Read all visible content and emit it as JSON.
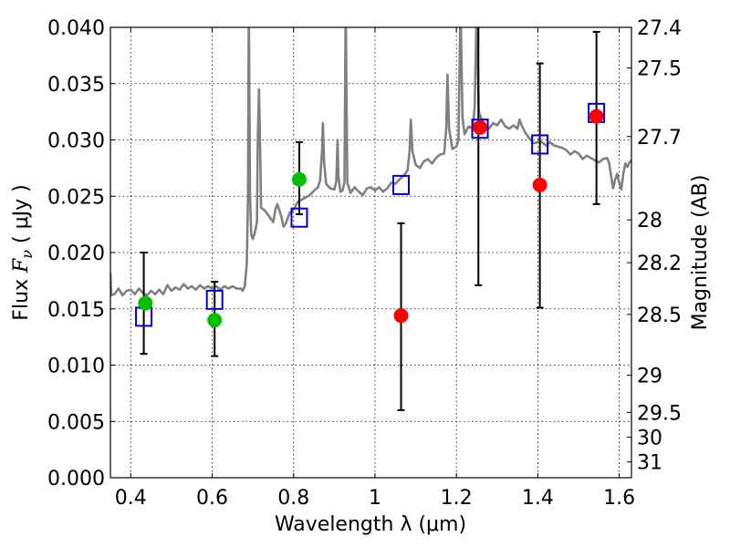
{
  "chart_data": {
    "type": "scatter",
    "title": "",
    "xlabel": "Wavelength  λ (μm)",
    "ylabel_parts": [
      "Flux  ",
      "F",
      "ν",
      "  ( μJy )"
    ],
    "y2label": "Magnitude (AB)",
    "xlim": [
      0.35,
      1.63
    ],
    "ylim": [
      0.0,
      0.04
    ],
    "grid": true,
    "xticks": [
      0.4,
      0.6,
      0.8,
      1.0,
      1.2,
      1.4,
      1.6
    ],
    "xtick_labels": [
      "0.4",
      "0.6",
      "0.8",
      "1",
      "1.2",
      "1.4",
      "1.6"
    ],
    "yticks": [
      0.0,
      0.005,
      0.01,
      0.015,
      0.02,
      0.025,
      0.03,
      0.035,
      0.04
    ],
    "ytick_labels": [
      "0.000",
      "0.005",
      "0.010",
      "0.015",
      "0.020",
      "0.025",
      "0.030",
      "0.035",
      "0.040"
    ],
    "y2ticks": [
      {
        "label": "27.4",
        "flux": 0.04
      },
      {
        "label": "27.5",
        "flux": 0.0364
      },
      {
        "label": "27.7",
        "flux": 0.0303
      },
      {
        "label": "28",
        "flux": 0.0229
      },
      {
        "label": "28.2",
        "flux": 0.0191
      },
      {
        "label": "28.5",
        "flux": 0.0145
      },
      {
        "label": "29",
        "flux": 0.0091
      },
      {
        "label": "29.5",
        "flux": 0.0058
      },
      {
        "label": "30",
        "flux": 0.0036
      },
      {
        "label": "31",
        "flux": 0.0014
      }
    ],
    "series": [
      {
        "kind": "line",
        "color": "#808080",
        "points": [
          [
            0.35,
            0.0182
          ],
          [
            0.352,
            0.0162
          ],
          [
            0.36,
            0.0163
          ],
          [
            0.37,
            0.0168
          ],
          [
            0.38,
            0.0162
          ],
          [
            0.39,
            0.0166
          ],
          [
            0.4,
            0.0167
          ],
          [
            0.41,
            0.0163
          ],
          [
            0.42,
            0.0168
          ],
          [
            0.43,
            0.0164
          ],
          [
            0.44,
            0.0162
          ],
          [
            0.45,
            0.0166
          ],
          [
            0.46,
            0.0163
          ],
          [
            0.47,
            0.0167
          ],
          [
            0.48,
            0.0163
          ],
          [
            0.49,
            0.0171
          ],
          [
            0.5,
            0.0166
          ],
          [
            0.51,
            0.0169
          ],
          [
            0.52,
            0.0167
          ],
          [
            0.53,
            0.0172
          ],
          [
            0.54,
            0.0168
          ],
          [
            0.55,
            0.017
          ],
          [
            0.56,
            0.0167
          ],
          [
            0.57,
            0.0171
          ],
          [
            0.58,
            0.0168
          ],
          [
            0.59,
            0.017
          ],
          [
            0.6,
            0.0168
          ],
          [
            0.61,
            0.017
          ],
          [
            0.62,
            0.0167
          ],
          [
            0.63,
            0.017
          ],
          [
            0.64,
            0.0168
          ],
          [
            0.65,
            0.017
          ],
          [
            0.66,
            0.0168
          ],
          [
            0.67,
            0.0168
          ],
          [
            0.675,
            0.0166
          ],
          [
            0.68,
            0.017
          ],
          [
            0.685,
            0.019
          ],
          [
            0.688,
            0.025
          ],
          [
            0.69,
            0.042
          ],
          [
            0.693,
            0.025
          ],
          [
            0.696,
            0.0216
          ],
          [
            0.7,
            0.0212
          ],
          [
            0.705,
            0.0218
          ],
          [
            0.71,
            0.0227
          ],
          [
            0.712,
            0.03
          ],
          [
            0.715,
            0.0345
          ],
          [
            0.718,
            0.029
          ],
          [
            0.72,
            0.024
          ],
          [
            0.73,
            0.0237
          ],
          [
            0.74,
            0.0232
          ],
          [
            0.75,
            0.0227
          ],
          [
            0.755,
            0.0238
          ],
          [
            0.76,
            0.0243
          ],
          [
            0.77,
            0.0232
          ],
          [
            0.775,
            0.0223
          ],
          [
            0.78,
            0.0225
          ],
          [
            0.79,
            0.0235
          ],
          [
            0.8,
            0.0238
          ],
          [
            0.81,
            0.0245
          ],
          [
            0.82,
            0.0247
          ],
          [
            0.83,
            0.0249
          ],
          [
            0.84,
            0.0251
          ],
          [
            0.85,
            0.0255
          ],
          [
            0.86,
            0.0258
          ],
          [
            0.865,
            0.0264
          ],
          [
            0.87,
            0.029
          ],
          [
            0.872,
            0.0315
          ],
          [
            0.875,
            0.028
          ],
          [
            0.88,
            0.0261
          ],
          [
            0.89,
            0.0257
          ],
          [
            0.9,
            0.0256
          ],
          [
            0.905,
            0.0263
          ],
          [
            0.908,
            0.03
          ],
          [
            0.91,
            0.0268
          ],
          [
            0.915,
            0.0254
          ],
          [
            0.92,
            0.0255
          ],
          [
            0.925,
            0.0262
          ],
          [
            0.928,
            0.042
          ],
          [
            0.932,
            0.0262
          ],
          [
            0.94,
            0.0253
          ],
          [
            0.95,
            0.0258
          ],
          [
            0.96,
            0.0254
          ],
          [
            0.97,
            0.0251
          ],
          [
            0.98,
            0.0257
          ],
          [
            0.99,
            0.0258
          ],
          [
            1.0,
            0.0255
          ],
          [
            1.01,
            0.0258
          ],
          [
            1.02,
            0.0254
          ],
          [
            1.03,
            0.0257
          ],
          [
            1.04,
            0.0262
          ],
          [
            1.05,
            0.0261
          ],
          [
            1.06,
            0.0265
          ],
          [
            1.07,
            0.0268
          ],
          [
            1.08,
            0.0273
          ],
          [
            1.085,
            0.029
          ],
          [
            1.088,
            0.0318
          ],
          [
            1.092,
            0.029
          ],
          [
            1.1,
            0.0278
          ],
          [
            1.11,
            0.0275
          ],
          [
            1.12,
            0.0281
          ],
          [
            1.13,
            0.0283
          ],
          [
            1.14,
            0.0279
          ],
          [
            1.15,
            0.0284
          ],
          [
            1.16,
            0.0287
          ],
          [
            1.17,
            0.0288
          ],
          [
            1.175,
            0.031
          ],
          [
            1.178,
            0.0358
          ],
          [
            1.182,
            0.031
          ],
          [
            1.19,
            0.0292
          ],
          [
            1.2,
            0.0294
          ],
          [
            1.205,
            0.03
          ],
          [
            1.21,
            0.042
          ],
          [
            1.215,
            0.032
          ],
          [
            1.22,
            0.0305
          ],
          [
            1.23,
            0.0312
          ],
          [
            1.24,
            0.031
          ],
          [
            1.245,
            0.033
          ],
          [
            1.25,
            0.042
          ],
          [
            1.255,
            0.0325
          ],
          [
            1.26,
            0.032
          ],
          [
            1.27,
            0.0312
          ],
          [
            1.28,
            0.031
          ],
          [
            1.29,
            0.0315
          ],
          [
            1.3,
            0.0313
          ],
          [
            1.31,
            0.0318
          ],
          [
            1.32,
            0.0312
          ],
          [
            1.33,
            0.031
          ],
          [
            1.34,
            0.0313
          ],
          [
            1.35,
            0.031
          ],
          [
            1.355,
            0.0318
          ],
          [
            1.36,
            0.0313
          ],
          [
            1.37,
            0.0306
          ],
          [
            1.38,
            0.0301
          ],
          [
            1.39,
            0.0297
          ],
          [
            1.4,
            0.0298
          ],
          [
            1.41,
            0.0298
          ],
          [
            1.42,
            0.0295
          ],
          [
            1.43,
            0.0298
          ],
          [
            1.44,
            0.0295
          ],
          [
            1.45,
            0.0294
          ],
          [
            1.46,
            0.0293
          ],
          [
            1.47,
            0.0291
          ],
          [
            1.48,
            0.0287
          ],
          [
            1.49,
            0.029
          ],
          [
            1.5,
            0.0288
          ],
          [
            1.51,
            0.0283
          ],
          [
            1.52,
            0.0286
          ],
          [
            1.53,
            0.0284
          ],
          [
            1.54,
            0.0282
          ],
          [
            1.55,
            0.028
          ],
          [
            1.56,
            0.0283
          ],
          [
            1.57,
            0.0284
          ],
          [
            1.575,
            0.028
          ],
          [
            1.58,
            0.0268
          ],
          [
            1.585,
            0.0257
          ],
          [
            1.59,
            0.0265
          ],
          [
            1.595,
            0.027
          ],
          [
            1.6,
            0.0262
          ],
          [
            1.605,
            0.0256
          ],
          [
            1.61,
            0.027
          ],
          [
            1.615,
            0.0279
          ],
          [
            1.62,
            0.0276
          ],
          [
            1.625,
            0.028
          ],
          [
            1.63,
            0.0282
          ]
        ]
      },
      {
        "kind": "errorbars",
        "color": "#000000",
        "points": [
          {
            "x": 0.432,
            "low": 0.011,
            "high": 0.02
          },
          {
            "x": 0.606,
            "low": 0.0108,
            "high": 0.0174
          },
          {
            "x": 0.814,
            "low": 0.0234,
            "high": 0.0298
          },
          {
            "x": 1.064,
            "low": 0.006,
            "high": 0.0226
          },
          {
            "x": 1.254,
            "low": 0.0171,
            "high": 0.042
          },
          {
            "x": 1.405,
            "low": 0.0151,
            "high": 0.0368
          },
          {
            "x": 1.544,
            "low": 0.0243,
            "high": 0.0396
          }
        ]
      },
      {
        "kind": "markers",
        "marker": "square",
        "color": "#0000cc",
        "points": [
          [
            0.432,
            0.0143
          ],
          [
            0.606,
            0.0158
          ],
          [
            0.814,
            0.0231
          ],
          [
            1.064,
            0.026
          ],
          [
            1.258,
            0.031
          ],
          [
            1.405,
            0.0296
          ],
          [
            1.544,
            0.0324
          ]
        ]
      },
      {
        "kind": "markers",
        "marker": "circle",
        "color": "#00c000",
        "points": [
          [
            0.436,
            0.0155
          ],
          [
            0.606,
            0.014
          ],
          [
            0.814,
            0.0265
          ]
        ]
      },
      {
        "kind": "markers",
        "marker": "circle",
        "color": "#ff0000",
        "points": [
          [
            1.064,
            0.0144
          ],
          [
            1.258,
            0.0311
          ],
          [
            1.405,
            0.026
          ],
          [
            1.544,
            0.0321
          ]
        ]
      }
    ]
  }
}
